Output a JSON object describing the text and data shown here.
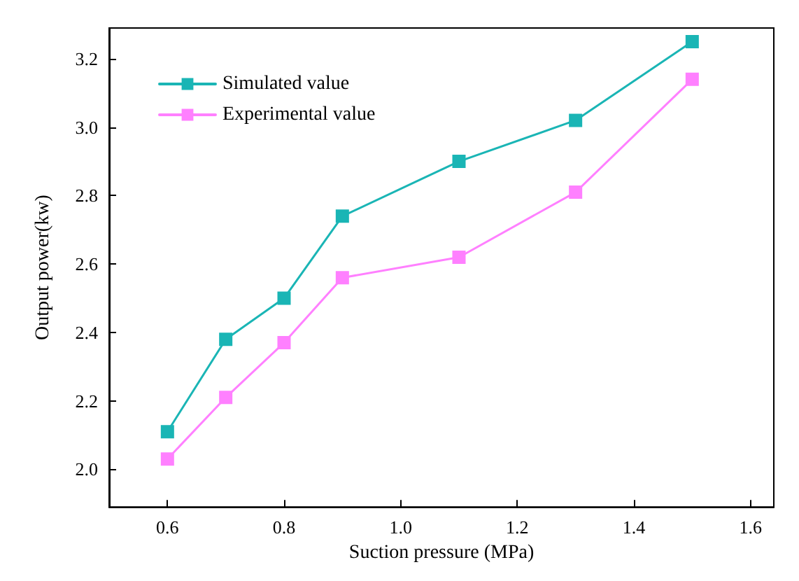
{
  "chart_data": {
    "type": "line",
    "xlabel": "Suction pressure (MPa)",
    "ylabel": "Output power(kw)",
    "x": [
      0.6,
      0.7,
      0.8,
      0.9,
      1.1,
      1.3,
      1.5
    ],
    "series": [
      {
        "name": "Simulated value",
        "color": "#1ab5b5",
        "values": [
          2.11,
          2.38,
          2.5,
          2.74,
          2.9,
          3.02,
          3.25
        ]
      },
      {
        "name": "Experimental value",
        "color": "#ff80ff",
        "values": [
          2.03,
          2.21,
          2.37,
          2.56,
          2.62,
          2.81,
          3.14
        ]
      }
    ],
    "xlim": [
      0.5,
      1.64
    ],
    "xticks": [
      0.6,
      0.8,
      {
        "value": 1,
        "label": "1.0"
      },
      1.2,
      1.4,
      1.6
    ],
    "ylim": [
      1.89,
      3.29
    ],
    "yticks": [
      {
        "value": 2,
        "label": "2.0"
      },
      2.2,
      2.4,
      2.6,
      2.8,
      {
        "value": 3,
        "label": "3.0"
      },
      3.2
    ],
    "grid": false,
    "legend": "top left",
    "marker": "square",
    "line_style": "solid"
  }
}
